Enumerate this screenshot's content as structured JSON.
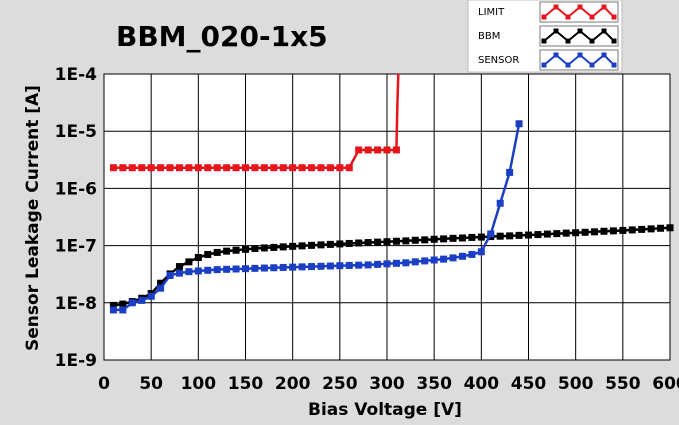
{
  "chart_data": {
    "type": "line",
    "title": "BBM_020-1x5",
    "xlabel": "Bias Voltage [V]",
    "ylabel": "Sensor Leakage Current [A]",
    "xlim": [
      0,
      600
    ],
    "ylim": [
      1e-09,
      0.0001
    ],
    "y_scale": "log",
    "grid": true,
    "legend_position": "top-right",
    "x_ticks": [
      0,
      50,
      100,
      150,
      200,
      250,
      300,
      350,
      400,
      450,
      500,
      550,
      600
    ],
    "x_tick_labels": [
      "0",
      "50",
      "100",
      "150",
      "200",
      "250",
      "300",
      "350",
      "400",
      "450",
      "500",
      "550",
      "600"
    ],
    "y_ticks": [
      1e-09,
      1e-08,
      1e-07,
      1e-06,
      1e-05,
      0.0001
    ],
    "y_tick_labels": [
      "1E-9",
      "1E-8",
      "1E-7",
      "1E-6",
      "1E-5",
      "1E-4"
    ],
    "series": [
      {
        "name": "LIMIT",
        "color": "#e8141c",
        "markers": true,
        "x": [
          10,
          20,
          30,
          40,
          50,
          60,
          70,
          80,
          90,
          100,
          110,
          120,
          130,
          140,
          150,
          160,
          170,
          180,
          190,
          200,
          210,
          220,
          230,
          240,
          250,
          260,
          270,
          280,
          290,
          300,
          310,
          311,
          312
        ],
        "y": [
          2.3e-06,
          2.3e-06,
          2.3e-06,
          2.3e-06,
          2.3e-06,
          2.3e-06,
          2.3e-06,
          2.3e-06,
          2.3e-06,
          2.3e-06,
          2.3e-06,
          2.3e-06,
          2.3e-06,
          2.3e-06,
          2.3e-06,
          2.3e-06,
          2.3e-06,
          2.3e-06,
          2.3e-06,
          2.3e-06,
          2.3e-06,
          2.3e-06,
          2.3e-06,
          2.3e-06,
          2.3e-06,
          2.3e-06,
          4.7e-06,
          4.7e-06,
          4.7e-06,
          4.7e-06,
          4.7e-06,
          3e-05,
          0.0001
        ],
        "marker_mask": [
          1,
          1,
          1,
          1,
          1,
          1,
          1,
          1,
          1,
          1,
          1,
          1,
          1,
          1,
          1,
          1,
          1,
          1,
          1,
          1,
          1,
          1,
          1,
          1,
          1,
          1,
          1,
          1,
          1,
          1,
          1,
          0,
          0
        ]
      },
      {
        "name": "BBM",
        "color": "#000000",
        "markers": true,
        "x": [
          10,
          20,
          30,
          40,
          50,
          60,
          70,
          80,
          90,
          100,
          110,
          120,
          130,
          140,
          150,
          160,
          170,
          180,
          190,
          200,
          210,
          220,
          230,
          240,
          250,
          260,
          270,
          280,
          290,
          300,
          310,
          320,
          330,
          340,
          350,
          360,
          370,
          380,
          390,
          400,
          410,
          420,
          430,
          440,
          450,
          460,
          470,
          480,
          490,
          500,
          510,
          520,
          530,
          540,
          550,
          560,
          570,
          580,
          590,
          600
        ],
        "y": [
          9e-09,
          9.5e-09,
          1.05e-08,
          1.2e-08,
          1.45e-08,
          2.2e-08,
          3.2e-08,
          4.3e-08,
          5.2e-08,
          6.2e-08,
          7e-08,
          7.6e-08,
          8e-08,
          8.3e-08,
          8.6e-08,
          8.9e-08,
          9.1e-08,
          9.3e-08,
          9.5e-08,
          9.7e-08,
          9.9e-08,
          1.01e-07,
          1.03e-07,
          1.05e-07,
          1.07e-07,
          1.09e-07,
          1.11e-07,
          1.13e-07,
          1.15e-07,
          1.17e-07,
          1.19e-07,
          1.21e-07,
          1.24e-07,
          1.26e-07,
          1.29e-07,
          1.31e-07,
          1.34e-07,
          1.36e-07,
          1.39e-07,
          1.41e-07,
          1.44e-07,
          1.46e-07,
          1.48e-07,
          1.51e-07,
          1.53e-07,
          1.56e-07,
          1.59e-07,
          1.62e-07,
          1.65e-07,
          1.68e-07,
          1.71e-07,
          1.74e-07,
          1.78e-07,
          1.81e-07,
          1.84e-07,
          1.88e-07,
          1.92e-07,
          1.96e-07,
          2.01e-07,
          2.05e-07
        ]
      },
      {
        "name": "SENSOR",
        "color": "#1a3fc4",
        "markers": true,
        "x": [
          10,
          20,
          30,
          40,
          50,
          60,
          70,
          80,
          90,
          100,
          110,
          120,
          130,
          140,
          150,
          160,
          170,
          180,
          190,
          200,
          210,
          220,
          230,
          240,
          250,
          260,
          270,
          280,
          290,
          300,
          310,
          320,
          330,
          340,
          350,
          360,
          370,
          380,
          390,
          400,
          410,
          420,
          430,
          440
        ],
        "y": [
          7.5e-09,
          7.5e-09,
          1e-08,
          1.1e-08,
          1.3e-08,
          1.8e-08,
          3e-08,
          3.3e-08,
          3.5e-08,
          3.6e-08,
          3.7e-08,
          3.8e-08,
          3.85e-08,
          3.9e-08,
          3.95e-08,
          4e-08,
          4.05e-08,
          4.1e-08,
          4.15e-08,
          4.2e-08,
          4.25e-08,
          4.3e-08,
          4.35e-08,
          4.4e-08,
          4.45e-08,
          4.5e-08,
          4.55e-08,
          4.6e-08,
          4.7e-08,
          4.8e-08,
          4.9e-08,
          5e-08,
          5.2e-08,
          5.4e-08,
          5.6e-08,
          5.8e-08,
          6.1e-08,
          6.5e-08,
          7e-08,
          7.8e-08,
          1.6e-07,
          5.5e-07,
          1.9e-06,
          1.35e-05
        ]
      }
    ]
  }
}
